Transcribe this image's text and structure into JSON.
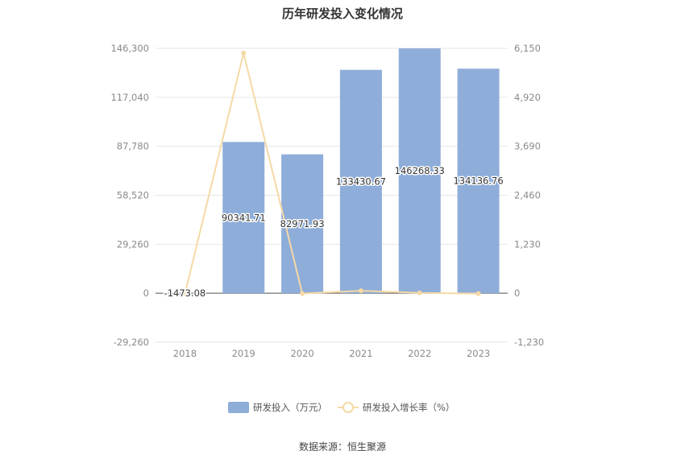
{
  "chart_data": {
    "type": "bar",
    "title": "历年研发投入变化情况",
    "categories": [
      "2018",
      "2019",
      "2020",
      "2021",
      "2022",
      "2023"
    ],
    "series": [
      {
        "name": "研发投入（万元）",
        "type": "bar",
        "axis": "left",
        "values": [
          -1473.08,
          90341.71,
          82971.93,
          133430.67,
          146268.33,
          134136.76
        ],
        "labels": [
          "-1473.08",
          "90341.71",
          "82971.93",
          "133430.67",
          "146268.33",
          "134136.76"
        ],
        "color": "#8eadd9"
      },
      {
        "name": "研发投入增长率（%）",
        "type": "line",
        "axis": "right",
        "values": [
          -20,
          6030,
          -8.16,
          60.82,
          9.62,
          -8.3
        ],
        "color": "#f5d9a6"
      }
    ],
    "y_left": {
      "ticks": [
        "146,300",
        "117,040",
        "87,780",
        "58,520",
        "29,260",
        "0",
        "-29,260"
      ],
      "ylim": [
        -29260,
        146300
      ]
    },
    "y_right": {
      "ticks": [
        "6,150",
        "4,920",
        "3,690",
        "2,460",
        "1,230",
        "0",
        "-1,230"
      ],
      "ylim": [
        -1230,
        6150
      ]
    },
    "grid": true,
    "legend_position": "bottom"
  },
  "source_text": "数据来源：恒生聚源"
}
